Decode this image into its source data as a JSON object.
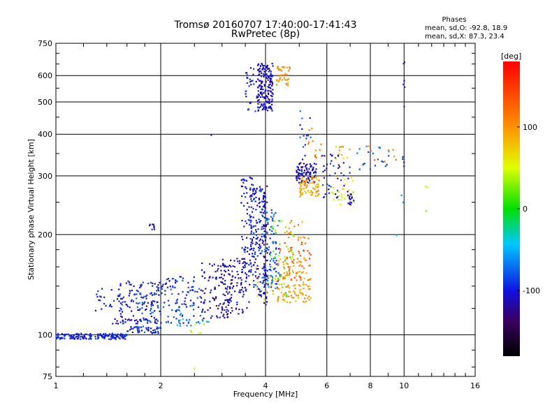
{
  "chart_data": {
    "type": "scatter",
    "title": "Tromsø 20160707 17:40:00-17:41:43",
    "subtitle": "RwPretec (8p)",
    "xlabel": "Frequency [MHz]",
    "ylabel": "Stationary phase Virtual Height [km]",
    "x_scale": "log",
    "y_scale": "log",
    "xlim": [
      1,
      16
    ],
    "ylim": [
      75,
      750
    ],
    "x_ticks": [
      1,
      2,
      4,
      6,
      8,
      10,
      16
    ],
    "x_tick_labels": [
      "1",
      "2",
      "4",
      "6",
      "8",
      "10",
      "16"
    ],
    "y_ticks": [
      75,
      100,
      200,
      300,
      400,
      500,
      600,
      750
    ],
    "y_tick_labels": [
      "75",
      "100",
      "200",
      "300",
      "400",
      "500",
      "600",
      "750"
    ],
    "x_minor_ticks": [
      1.2,
      1.4,
      1.6,
      1.8,
      2.5,
      3,
      3.5,
      5,
      7,
      9,
      11,
      12,
      13,
      14,
      15
    ],
    "y_minor_ticks": [
      80,
      90,
      120,
      140,
      160,
      180,
      250,
      350,
      450,
      550,
      650,
      700
    ],
    "grid": true,
    "legend": {
      "title": "Phases",
      "lines": [
        "mean, sd,O: -92.8, 18.9",
        "mean, sd,X:  87.3, 23.4"
      ]
    },
    "colorbar": {
      "label": "[deg]",
      "ticks": [
        100,
        0,
        -100
      ],
      "tick_labels": [
        "100",
        "0",
        "-100"
      ],
      "range": [
        -180,
        180
      ]
    },
    "point_groups": [
      {
        "x0": 1.0,
        "x1": 1.6,
        "y0": 97,
        "y1": 101,
        "phase": -95,
        "n": 170
      },
      {
        "x0": 1.6,
        "x1": 2.0,
        "y0": 101,
        "y1": 106,
        "phase": -95,
        "n": 50
      },
      {
        "x0": 1.45,
        "x1": 2.0,
        "y0": 108,
        "y1": 112,
        "phase": -100,
        "n": 40
      },
      {
        "x0": 1.3,
        "x1": 1.5,
        "y0": 118,
        "y1": 140,
        "phase": -105,
        "n": 18
      },
      {
        "x0": 1.5,
        "x1": 2.0,
        "y0": 112,
        "y1": 145,
        "phase": -100,
        "n": 110
      },
      {
        "x0": 1.65,
        "x1": 2.05,
        "y0": 115,
        "y1": 140,
        "phase": -75,
        "n": 15
      },
      {
        "x0": 2.0,
        "x1": 2.6,
        "y0": 108,
        "y1": 150,
        "phase": -90,
        "n": 100
      },
      {
        "x0": 2.2,
        "x1": 2.8,
        "y0": 105,
        "y1": 120,
        "phase": -50,
        "n": 18
      },
      {
        "x0": 2.4,
        "x1": 2.7,
        "y0": 101,
        "y1": 108,
        "phase": 50,
        "n": 6
      },
      {
        "x0": 2.6,
        "x1": 3.2,
        "y0": 112,
        "y1": 165,
        "phase": -115,
        "n": 100
      },
      {
        "x0": 3.0,
        "x1": 3.6,
        "y0": 115,
        "y1": 170,
        "phase": -110,
        "n": 100
      },
      {
        "x0": 3.4,
        "x1": 3.7,
        "y0": 150,
        "y1": 300,
        "phase": -100,
        "n": 90
      },
      {
        "x0": 3.6,
        "x1": 4.0,
        "y0": 130,
        "y1": 280,
        "phase": -100,
        "n": 150
      },
      {
        "x0": 3.9,
        "x1": 4.4,
        "y0": 135,
        "y1": 240,
        "phase": -80,
        "n": 110
      },
      {
        "x0": 3.95,
        "x1": 4.05,
        "y0": 120,
        "y1": 280,
        "phase": -120,
        "n": 50
      },
      {
        "x0": 3.7,
        "x1": 4.3,
        "y0": 125,
        "y1": 160,
        "phase": 60,
        "n": 18
      },
      {
        "x0": 4.1,
        "x1": 4.8,
        "y0": 130,
        "y1": 220,
        "phase": 20,
        "n": 45
      },
      {
        "x0": 4.3,
        "x1": 5.4,
        "y0": 125,
        "y1": 170,
        "phase": 95,
        "n": 130
      },
      {
        "x0": 4.4,
        "x1": 5.4,
        "y0": 145,
        "y1": 200,
        "phase": 130,
        "n": 40
      },
      {
        "x0": 4.5,
        "x1": 5.2,
        "y0": 195,
        "y1": 230,
        "phase": 100,
        "n": 18
      },
      {
        "x0": 3.8,
        "x1": 4.2,
        "y0": 470,
        "y1": 655,
        "phase": -110,
        "n": 180
      },
      {
        "x0": 3.5,
        "x1": 3.8,
        "y0": 460,
        "y1": 650,
        "phase": -100,
        "n": 30
      },
      {
        "x0": 4.3,
        "x1": 4.7,
        "y0": 560,
        "y1": 640,
        "phase": 100,
        "n": 40
      },
      {
        "x0": 4.9,
        "x1": 5.6,
        "y0": 285,
        "y1": 330,
        "phase": -110,
        "n": 100
      },
      {
        "x0": 5.0,
        "x1": 5.7,
        "y0": 260,
        "y1": 300,
        "phase": 90,
        "n": 80
      },
      {
        "x0": 5.0,
        "x1": 5.4,
        "y0": 330,
        "y1": 480,
        "phase": -90,
        "n": 15
      },
      {
        "x0": 5.3,
        "x1": 5.8,
        "y0": 340,
        "y1": 420,
        "phase": 110,
        "n": 12
      },
      {
        "x0": 5.8,
        "x1": 7.0,
        "y0": 250,
        "y1": 350,
        "phase": -100,
        "n": 45
      },
      {
        "x0": 6.2,
        "x1": 7.2,
        "y0": 245,
        "y1": 300,
        "phase": 50,
        "n": 30
      },
      {
        "x0": 6.3,
        "x1": 7.0,
        "y0": 330,
        "y1": 370,
        "phase": 80,
        "n": 12
      },
      {
        "x0": 6.8,
        "x1": 7.2,
        "y0": 245,
        "y1": 265,
        "phase": -110,
        "n": 15
      },
      {
        "x0": 7.3,
        "x1": 9.2,
        "y0": 300,
        "y1": 370,
        "phase": -80,
        "n": 20
      },
      {
        "x0": 7.8,
        "x1": 9.5,
        "y0": 330,
        "y1": 370,
        "phase": 110,
        "n": 8
      },
      {
        "x0": 9.95,
        "x1": 10.05,
        "y0": 480,
        "y1": 660,
        "phase": -110,
        "n": 6
      },
      {
        "x0": 9.9,
        "x1": 10.1,
        "y0": 320,
        "y1": 360,
        "phase": -90,
        "n": 4
      },
      {
        "x0": 11.5,
        "x1": 11.7,
        "y0": 215,
        "y1": 290,
        "phase": 40,
        "n": 3
      },
      {
        "x0": 9.5,
        "x1": 10.2,
        "y0": 185,
        "y1": 275,
        "phase": -50,
        "n": 3
      },
      {
        "x0": 1.85,
        "x1": 1.92,
        "y0": 207,
        "y1": 215,
        "phase": -110,
        "n": 8
      },
      {
        "x0": 2.6,
        "x1": 2.8,
        "y0": 395,
        "y1": 400,
        "phase": -110,
        "n": 1
      },
      {
        "x0": 2.5,
        "x1": 2.6,
        "y0": 79,
        "y1": 80,
        "phase": 80,
        "n": 1
      }
    ]
  }
}
